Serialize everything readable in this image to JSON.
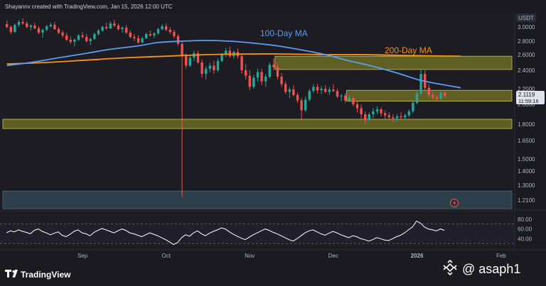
{
  "header": {
    "attribution": "Shayannv created with TradingView.com, Jan 15, 2026 12:00 UTC"
  },
  "footer": {
    "tv_brand": "TradingView",
    "watermark": "@ asaph1"
  },
  "colors": {
    "background": "#1a1a20",
    "up_candle": "#26a69a",
    "down_candle": "#ef5350",
    "ma100": "#5b9cf6",
    "ma200": "#f7931a",
    "zone_fill": "#6b6a23",
    "zone_border": "#c9c25a",
    "demand_fill": "#2f4450",
    "rsi_line": "#ffffff",
    "price_badge": "#e0e3eb"
  },
  "chart_data": {
    "type": "candlestick",
    "symbol_quote": "USDT",
    "current_price": "2.1119",
    "countdown": "11:59:16",
    "y_ticks": [
      "3.0000",
      "2.8000",
      "2.6000",
      "2.4000",
      "2.2000",
      "2.0000",
      "1.8000",
      "1.6500",
      "1.5000",
      "1.4000",
      "1.3000",
      "1.2100"
    ],
    "x_ticks": [
      "Sep",
      "Oct",
      "Nov",
      "Dec",
      "2026",
      "Feb"
    ],
    "ma_labels": [
      "100-Day MA",
      "200-Day MA"
    ],
    "candles": [
      [
        3.04,
        3.09,
        2.98,
        3.0
      ],
      [
        3.0,
        3.02,
        2.9,
        2.93
      ],
      [
        2.93,
        3.05,
        2.92,
        3.03
      ],
      [
        3.03,
        3.1,
        3.0,
        3.07
      ],
      [
        3.07,
        3.12,
        3.03,
        3.05
      ],
      [
        3.05,
        3.08,
        2.98,
        3.0
      ],
      [
        3.0,
        3.04,
        2.95,
        3.02
      ],
      [
        3.02,
        3.06,
        2.97,
        2.98
      ],
      [
        2.98,
        3.01,
        2.9,
        2.92
      ],
      [
        2.92,
        2.98,
        2.85,
        2.96
      ],
      [
        2.96,
        3.03,
        2.94,
        3.01
      ],
      [
        3.01,
        3.06,
        2.99,
        3.03
      ],
      [
        3.03,
        3.07,
        2.96,
        2.97
      ],
      [
        2.97,
        3.0,
        2.9,
        2.92
      ],
      [
        2.92,
        2.95,
        2.85,
        2.88
      ],
      [
        2.88,
        2.92,
        2.8,
        2.82
      ],
      [
        2.82,
        2.87,
        2.76,
        2.79
      ],
      [
        2.79,
        2.84,
        2.72,
        2.82
      ],
      [
        2.82,
        2.9,
        2.8,
        2.88
      ],
      [
        2.88,
        2.93,
        2.84,
        2.86
      ],
      [
        2.86,
        2.9,
        2.78,
        2.8
      ],
      [
        2.8,
        2.85,
        2.74,
        2.83
      ],
      [
        2.83,
        2.92,
        2.82,
        2.9
      ],
      [
        2.9,
        2.97,
        2.88,
        2.95
      ],
      [
        2.95,
        3.02,
        2.93,
        3.0
      ],
      [
        3.0,
        3.06,
        2.96,
        2.98
      ],
      [
        2.98,
        3.08,
        2.97,
        3.05
      ],
      [
        3.05,
        3.1,
        3.0,
        3.02
      ],
      [
        3.02,
        3.05,
        2.95,
        2.97
      ],
      [
        2.97,
        3.01,
        2.92,
        2.99
      ],
      [
        2.99,
        3.03,
        2.9,
        2.92
      ],
      [
        2.92,
        2.95,
        2.84,
        2.86
      ],
      [
        2.86,
        2.9,
        2.8,
        2.84
      ],
      [
        2.84,
        2.88,
        2.76,
        2.78
      ],
      [
        2.78,
        2.86,
        2.77,
        2.84
      ],
      [
        2.84,
        2.92,
        2.83,
        2.9
      ],
      [
        2.9,
        2.95,
        2.86,
        2.88
      ],
      [
        2.88,
        2.93,
        2.84,
        2.91
      ],
      [
        2.91,
        2.99,
        2.89,
        2.97
      ],
      [
        2.97,
        3.04,
        2.95,
        3.01
      ],
      [
        3.01,
        3.05,
        2.94,
        2.96
      ],
      [
        2.96,
        3.0,
        2.9,
        2.93
      ],
      [
        2.93,
        2.96,
        2.84,
        2.87
      ],
      [
        2.87,
        2.9,
        2.73,
        2.76
      ],
      [
        2.76,
        2.8,
        1.23,
        2.58
      ],
      [
        2.58,
        2.62,
        2.42,
        2.46
      ],
      [
        2.46,
        2.6,
        2.44,
        2.56
      ],
      [
        2.56,
        2.66,
        2.52,
        2.62
      ],
      [
        2.62,
        2.66,
        2.48,
        2.5
      ],
      [
        2.5,
        2.54,
        2.32,
        2.36
      ],
      [
        2.36,
        2.45,
        2.3,
        2.42
      ],
      [
        2.42,
        2.5,
        2.38,
        2.46
      ],
      [
        2.46,
        2.52,
        2.36,
        2.4
      ],
      [
        2.4,
        2.55,
        2.38,
        2.52
      ],
      [
        2.52,
        2.62,
        2.5,
        2.6
      ],
      [
        2.6,
        2.7,
        2.57,
        2.66
      ],
      [
        2.66,
        2.72,
        2.56,
        2.58
      ],
      [
        2.58,
        2.66,
        2.55,
        2.64
      ],
      [
        2.64,
        2.69,
        2.55,
        2.58
      ],
      [
        2.58,
        2.6,
        2.36,
        2.4
      ],
      [
        2.4,
        2.48,
        2.3,
        2.34
      ],
      [
        2.34,
        2.4,
        2.18,
        2.22
      ],
      [
        2.22,
        2.35,
        2.2,
        2.32
      ],
      [
        2.32,
        2.42,
        2.28,
        2.38
      ],
      [
        2.38,
        2.42,
        2.24,
        2.28
      ],
      [
        2.28,
        2.36,
        2.22,
        2.33
      ],
      [
        2.33,
        2.5,
        2.31,
        2.47
      ],
      [
        2.47,
        2.55,
        2.4,
        2.44
      ],
      [
        2.44,
        2.48,
        2.3,
        2.33
      ],
      [
        2.33,
        2.37,
        2.22,
        2.25
      ],
      [
        2.25,
        2.28,
        2.13,
        2.16
      ],
      [
        2.16,
        2.22,
        2.08,
        2.19
      ],
      [
        2.19,
        2.24,
        2.1,
        2.12
      ],
      [
        2.12,
        2.15,
        2.02,
        2.05
      ],
      [
        2.05,
        2.08,
        1.84,
        1.94
      ],
      [
        1.94,
        2.1,
        1.92,
        2.06
      ],
      [
        2.06,
        2.2,
        2.04,
        2.17
      ],
      [
        2.17,
        2.25,
        2.15,
        2.22
      ],
      [
        2.22,
        2.25,
        2.14,
        2.18
      ],
      [
        2.18,
        2.23,
        2.13,
        2.2
      ],
      [
        2.2,
        2.24,
        2.14,
        2.16
      ],
      [
        2.16,
        2.22,
        2.12,
        2.19
      ],
      [
        2.19,
        2.25,
        2.16,
        2.17
      ],
      [
        2.17,
        2.2,
        2.08,
        2.1
      ],
      [
        2.1,
        2.13,
        2.04,
        2.11
      ],
      [
        2.11,
        2.14,
        2.02,
        2.05
      ],
      [
        2.05,
        2.12,
        2.03,
        2.08
      ],
      [
        2.08,
        2.1,
        1.98,
        2.0
      ],
      [
        2.0,
        2.04,
        1.92,
        1.96
      ],
      [
        1.96,
        2.0,
        1.86,
        1.9
      ],
      [
        1.9,
        1.93,
        1.8,
        1.84
      ],
      [
        1.84,
        1.92,
        1.83,
        1.9
      ],
      [
        1.9,
        1.96,
        1.86,
        1.93
      ],
      [
        1.93,
        1.98,
        1.9,
        1.95
      ],
      [
        1.95,
        1.97,
        1.88,
        1.91
      ],
      [
        1.91,
        1.94,
        1.85,
        1.89
      ],
      [
        1.89,
        1.92,
        1.84,
        1.87
      ],
      [
        1.87,
        1.9,
        1.82,
        1.86
      ],
      [
        1.86,
        1.9,
        1.83,
        1.88
      ],
      [
        1.88,
        1.92,
        1.85,
        1.87
      ],
      [
        1.87,
        1.91,
        1.84,
        1.89
      ],
      [
        1.89,
        1.95,
        1.87,
        1.93
      ],
      [
        1.93,
        2.05,
        1.91,
        2.02
      ],
      [
        2.02,
        2.16,
        2.0,
        2.14
      ],
      [
        2.14,
        2.41,
        2.12,
        2.36
      ],
      [
        2.36,
        2.4,
        2.18,
        2.21
      ],
      [
        2.21,
        2.25,
        2.08,
        2.12
      ],
      [
        2.12,
        2.16,
        2.06,
        2.09
      ],
      [
        2.09,
        2.12,
        2.04,
        2.07
      ],
      [
        2.07,
        2.17,
        2.06,
        2.15
      ],
      [
        2.15,
        2.18,
        2.08,
        2.11
      ]
    ],
    "ma100": [
      [
        0,
        2.46
      ],
      [
        6,
        2.5
      ],
      [
        13,
        2.56
      ],
      [
        20,
        2.62
      ],
      [
        26,
        2.68
      ],
      [
        33,
        2.73
      ],
      [
        38,
        2.78
      ],
      [
        44,
        2.8
      ],
      [
        50,
        2.81
      ],
      [
        56,
        2.8
      ],
      [
        62,
        2.77
      ],
      [
        68,
        2.73
      ],
      [
        74,
        2.67
      ],
      [
        80,
        2.6
      ],
      [
        86,
        2.52
      ],
      [
        92,
        2.45
      ],
      [
        98,
        2.37
      ],
      [
        104,
        2.29
      ],
      [
        110,
        2.24
      ],
      [
        114,
        2.21
      ]
    ],
    "ma200": [
      [
        0,
        2.48
      ],
      [
        10,
        2.5
      ],
      [
        20,
        2.53
      ],
      [
        30,
        2.56
      ],
      [
        40,
        2.58
      ],
      [
        50,
        2.6
      ],
      [
        60,
        2.61
      ],
      [
        70,
        2.61
      ],
      [
        80,
        2.6
      ],
      [
        90,
        2.6
      ],
      [
        100,
        2.59
      ],
      [
        114,
        2.58
      ]
    ],
    "zones": [
      {
        "low": 2.41,
        "high": 2.58,
        "from": 68
      },
      {
        "low": 2.04,
        "high": 2.18,
        "from": 86
      },
      {
        "low": 1.76,
        "high": 1.85,
        "from": 0
      }
    ],
    "demand_zone": {
      "low": 1.1,
      "high": 1.265
    },
    "rsi_ticks": [
      "80.00",
      "60.00",
      "40.00"
    ],
    "rsi": [
      52,
      56,
      54,
      58,
      55,
      53,
      50,
      57,
      60,
      55,
      52,
      48,
      51,
      54,
      47,
      44,
      49,
      55,
      58,
      52,
      50,
      46,
      53,
      57,
      61,
      58,
      55,
      52,
      56,
      60,
      57,
      52,
      50,
      47,
      44,
      48,
      52,
      49,
      46,
      42,
      38,
      33,
      28,
      32,
      42,
      48,
      45,
      52,
      56,
      50,
      46,
      51,
      55,
      58,
      62,
      60,
      54,
      49,
      45,
      41,
      38,
      43,
      48,
      52,
      56,
      60,
      57,
      53,
      50,
      46,
      42,
      38,
      35,
      40,
      46,
      52,
      56,
      58,
      54,
      50,
      47,
      51,
      55,
      52,
      48,
      45,
      42,
      46,
      44,
      40,
      38,
      35,
      38,
      42,
      40,
      37,
      36,
      40,
      44,
      47,
      52,
      58,
      64,
      76,
      72,
      64,
      60,
      58,
      56,
      60,
      57
    ]
  }
}
